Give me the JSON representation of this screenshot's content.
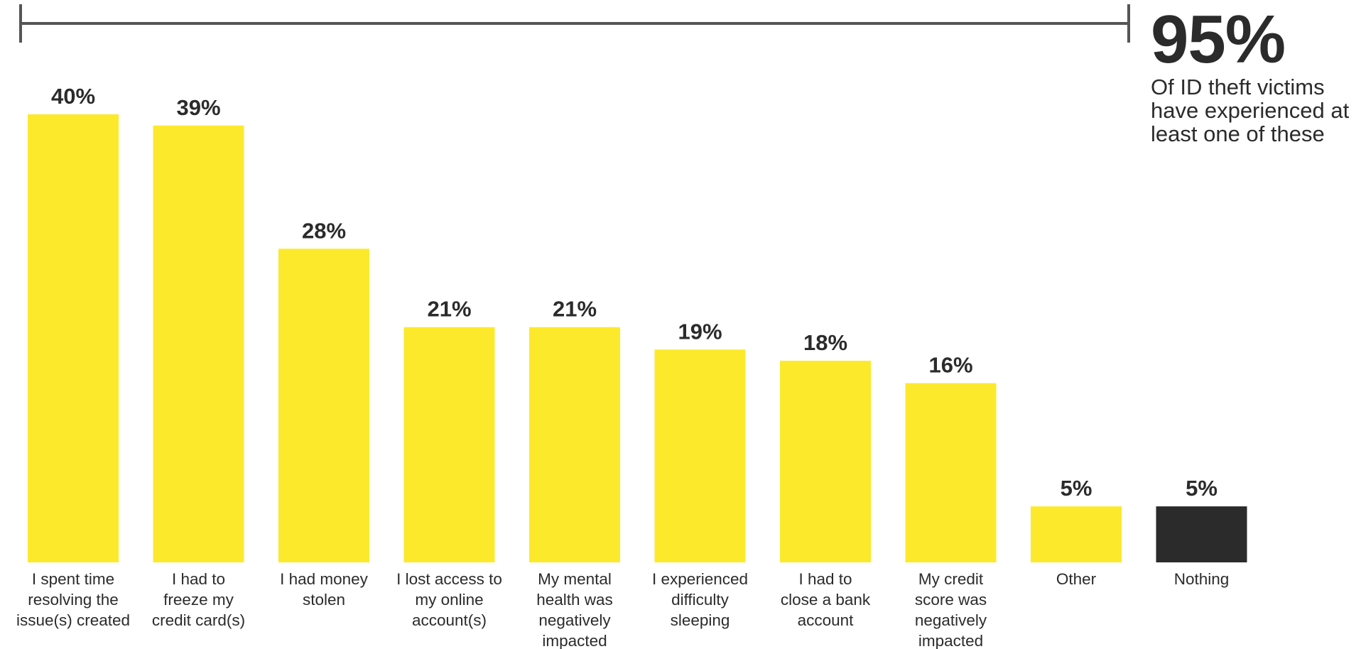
{
  "chart_data": {
    "type": "bar",
    "categories": [
      "I spent time resolving the issue(s) created",
      "I had to freeze my credit card(s)",
      "I had money stolen",
      "I lost access to my online account(s)",
      "My mental health was negatively impacted",
      "I experienced difficulty sleeping",
      "I had to close a bank account",
      "My credit score was negatively impacted",
      "Other",
      "Nothing"
    ],
    "category_lines": [
      [
        "I spent time",
        "resolving the",
        "issue(s) created"
      ],
      [
        "I had to",
        "freeze my",
        "credit card(s)"
      ],
      [
        "I had money",
        "stolen"
      ],
      [
        "I lost access to",
        "my online",
        "account(s)"
      ],
      [
        "My mental",
        "health was",
        "negatively",
        "impacted"
      ],
      [
        "I experienced",
        "difficulty",
        "sleeping"
      ],
      [
        "I had to",
        "close a bank",
        "account"
      ],
      [
        "My credit",
        "score was",
        "negatively",
        "impacted"
      ],
      [
        "Other"
      ],
      [
        "Nothing"
      ]
    ],
    "values": [
      40,
      39,
      28,
      21,
      21,
      19,
      18,
      16,
      5,
      5
    ],
    "data_labels": [
      "40%",
      "39%",
      "28%",
      "21%",
      "21%",
      "19%",
      "18%",
      "16%",
      "5%",
      "5%"
    ],
    "bar_colors": [
      "#fce92c",
      "#fce92c",
      "#fce92c",
      "#fce92c",
      "#fce92c",
      "#fce92c",
      "#fce92c",
      "#fce92c",
      "#fce92c",
      "#2b2b2b"
    ],
    "ylim": [
      0,
      40
    ],
    "grid": false,
    "legend": "none",
    "title": "",
    "xlabel": "",
    "ylabel": ""
  },
  "callout": {
    "value": "95%",
    "text_lines": [
      "Of ID theft victims",
      "have experienced at",
      "least one of these"
    ]
  },
  "colors": {
    "bar": "#fce92c",
    "bar_highlight": "#2b2b2b",
    "text": "#2b2b2b",
    "bracket": "#555555"
  }
}
